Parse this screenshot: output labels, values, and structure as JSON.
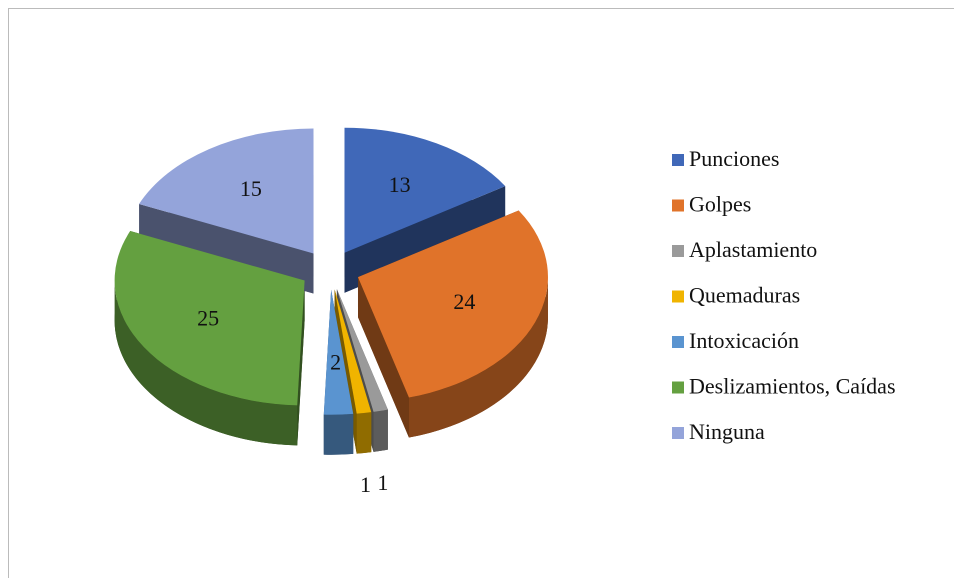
{
  "chart_data": {
    "type": "pie",
    "categories": [
      "Punciones",
      "Golpes",
      "Aplastamiento",
      "Quemaduras",
      "Intoxicación",
      "Deslizamientos, Caídas",
      "Ninguna"
    ],
    "values": [
      13,
      24,
      1,
      1,
      2,
      25,
      15
    ],
    "colors": [
      "#4068b8",
      "#e0732a",
      "#9a9a9a",
      "#f0b400",
      "#5a94d0",
      "#64a040",
      "#94a4da"
    ],
    "legend": "right",
    "exploded": true,
    "three_d": true
  }
}
